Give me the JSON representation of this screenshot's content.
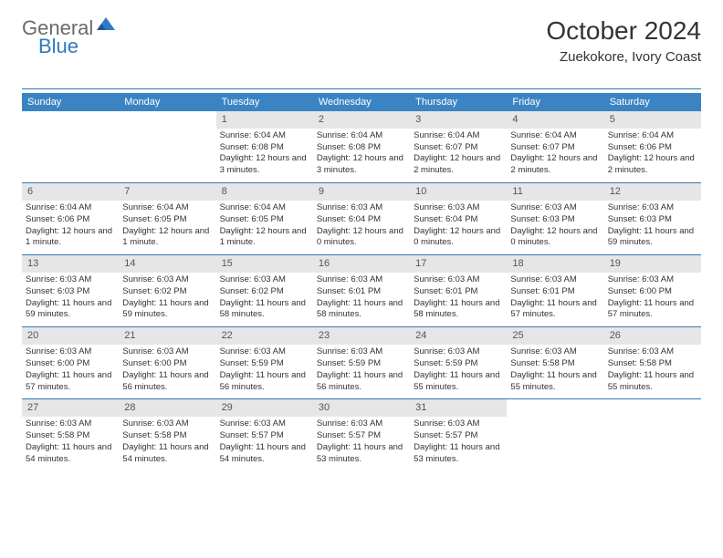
{
  "logo": {
    "general": "General",
    "blue": "Blue"
  },
  "title": "October 2024",
  "location": "Zuekokore, Ivory Coast",
  "colors": {
    "accent": "#3b84c4",
    "rule": "#2f7ac0",
    "dayNumBg": "#e6e6e6",
    "text": "#333333",
    "logoGray": "#6a6a6a"
  },
  "dayNames": [
    "Sunday",
    "Monday",
    "Tuesday",
    "Wednesday",
    "Thursday",
    "Friday",
    "Saturday"
  ],
  "firstDayIndex": 2,
  "daysInMonth": 31,
  "days": {
    "1": {
      "sunrise": "6:04 AM",
      "sunset": "6:08 PM",
      "daylight": "12 hours and 3 minutes."
    },
    "2": {
      "sunrise": "6:04 AM",
      "sunset": "6:08 PM",
      "daylight": "12 hours and 3 minutes."
    },
    "3": {
      "sunrise": "6:04 AM",
      "sunset": "6:07 PM",
      "daylight": "12 hours and 2 minutes."
    },
    "4": {
      "sunrise": "6:04 AM",
      "sunset": "6:07 PM",
      "daylight": "12 hours and 2 minutes."
    },
    "5": {
      "sunrise": "6:04 AM",
      "sunset": "6:06 PM",
      "daylight": "12 hours and 2 minutes."
    },
    "6": {
      "sunrise": "6:04 AM",
      "sunset": "6:06 PM",
      "daylight": "12 hours and 1 minute."
    },
    "7": {
      "sunrise": "6:04 AM",
      "sunset": "6:05 PM",
      "daylight": "12 hours and 1 minute."
    },
    "8": {
      "sunrise": "6:04 AM",
      "sunset": "6:05 PM",
      "daylight": "12 hours and 1 minute."
    },
    "9": {
      "sunrise": "6:03 AM",
      "sunset": "6:04 PM",
      "daylight": "12 hours and 0 minutes."
    },
    "10": {
      "sunrise": "6:03 AM",
      "sunset": "6:04 PM",
      "daylight": "12 hours and 0 minutes."
    },
    "11": {
      "sunrise": "6:03 AM",
      "sunset": "6:03 PM",
      "daylight": "12 hours and 0 minutes."
    },
    "12": {
      "sunrise": "6:03 AM",
      "sunset": "6:03 PM",
      "daylight": "11 hours and 59 minutes."
    },
    "13": {
      "sunrise": "6:03 AM",
      "sunset": "6:03 PM",
      "daylight": "11 hours and 59 minutes."
    },
    "14": {
      "sunrise": "6:03 AM",
      "sunset": "6:02 PM",
      "daylight": "11 hours and 59 minutes."
    },
    "15": {
      "sunrise": "6:03 AM",
      "sunset": "6:02 PM",
      "daylight": "11 hours and 58 minutes."
    },
    "16": {
      "sunrise": "6:03 AM",
      "sunset": "6:01 PM",
      "daylight": "11 hours and 58 minutes."
    },
    "17": {
      "sunrise": "6:03 AM",
      "sunset": "6:01 PM",
      "daylight": "11 hours and 58 minutes."
    },
    "18": {
      "sunrise": "6:03 AM",
      "sunset": "6:01 PM",
      "daylight": "11 hours and 57 minutes."
    },
    "19": {
      "sunrise": "6:03 AM",
      "sunset": "6:00 PM",
      "daylight": "11 hours and 57 minutes."
    },
    "20": {
      "sunrise": "6:03 AM",
      "sunset": "6:00 PM",
      "daylight": "11 hours and 57 minutes."
    },
    "21": {
      "sunrise": "6:03 AM",
      "sunset": "6:00 PM",
      "daylight": "11 hours and 56 minutes."
    },
    "22": {
      "sunrise": "6:03 AM",
      "sunset": "5:59 PM",
      "daylight": "11 hours and 56 minutes."
    },
    "23": {
      "sunrise": "6:03 AM",
      "sunset": "5:59 PM",
      "daylight": "11 hours and 56 minutes."
    },
    "24": {
      "sunrise": "6:03 AM",
      "sunset": "5:59 PM",
      "daylight": "11 hours and 55 minutes."
    },
    "25": {
      "sunrise": "6:03 AM",
      "sunset": "5:58 PM",
      "daylight": "11 hours and 55 minutes."
    },
    "26": {
      "sunrise": "6:03 AM",
      "sunset": "5:58 PM",
      "daylight": "11 hours and 55 minutes."
    },
    "27": {
      "sunrise": "6:03 AM",
      "sunset": "5:58 PM",
      "daylight": "11 hours and 54 minutes."
    },
    "28": {
      "sunrise": "6:03 AM",
      "sunset": "5:58 PM",
      "daylight": "11 hours and 54 minutes."
    },
    "29": {
      "sunrise": "6:03 AM",
      "sunset": "5:57 PM",
      "daylight": "11 hours and 54 minutes."
    },
    "30": {
      "sunrise": "6:03 AM",
      "sunset": "5:57 PM",
      "daylight": "11 hours and 53 minutes."
    },
    "31": {
      "sunrise": "6:03 AM",
      "sunset": "5:57 PM",
      "daylight": "11 hours and 53 minutes."
    }
  },
  "labels": {
    "sunrise": "Sunrise: ",
    "sunset": "Sunset: ",
    "daylight": "Daylight: "
  }
}
